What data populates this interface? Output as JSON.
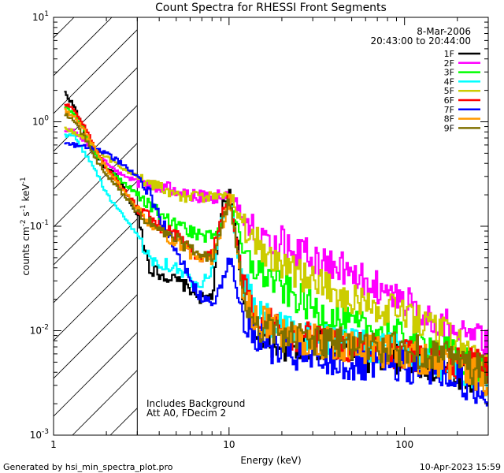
{
  "chart_data": {
    "type": "line",
    "title": "Count Spectra for RHESSI Front Segments",
    "xlabel": "Energy (keV)",
    "ylabel_parts": [
      "counts cm",
      "-2",
      " s",
      "-1",
      " keV",
      "-1"
    ],
    "x_scale": "log",
    "y_scale": "log",
    "xlim": [
      1,
      300
    ],
    "ylim": [
      0.001,
      10
    ],
    "x_ticks": [
      {
        "value": 1,
        "label": "1"
      },
      {
        "value": 10,
        "label": "10"
      },
      {
        "value": 100,
        "label": "100"
      }
    ],
    "y_ticks": [
      {
        "exp": -3,
        "label_base": "10",
        "label_exp": "-3"
      },
      {
        "exp": -2,
        "label_base": "10",
        "label_exp": "-2"
      },
      {
        "exp": -1,
        "label_base": "10",
        "label_exp": "-1"
      },
      {
        "exp": 0,
        "label_base": "10",
        "label_exp": "0"
      },
      {
        "exp": 1,
        "label_base": "10",
        "label_exp": "1"
      }
    ],
    "shaded_region": {
      "from_energy": 1,
      "to_energy": 3,
      "pattern": "diagonal-hatch"
    },
    "header_text": {
      "date": "8-Mar-2006",
      "time_range": "20:43:00 to 20:44:00"
    },
    "annotations": [
      "Includes Background",
      "Att A0, FDecim 2"
    ],
    "footer_left": "Generated by hsi_min_spectra_plot.pro",
    "footer_right": "10-Apr-2023 15:59",
    "legend_position": "top-right",
    "series": [
      {
        "name": "1F",
        "color": "#000000",
        "points": [
          [
            1.15,
            1.9
          ],
          [
            1.3,
            1.4
          ],
          [
            1.5,
            0.75
          ],
          [
            1.7,
            0.5
          ],
          [
            2.0,
            0.35
          ],
          [
            2.3,
            0.3
          ],
          [
            2.6,
            0.2
          ],
          [
            3.0,
            0.12
          ],
          [
            3.5,
            0.04
          ],
          [
            4.0,
            0.035
          ],
          [
            5.0,
            0.03
          ],
          [
            6.0,
            0.025
          ],
          [
            7.0,
            0.02
          ],
          [
            8.0,
            0.022
          ],
          [
            9.0,
            0.15
          ],
          [
            10.0,
            0.2
          ],
          [
            11.0,
            0.08
          ],
          [
            12.0,
            0.015
          ],
          [
            14.0,
            0.01
          ],
          [
            17.0,
            0.008
          ],
          [
            20.0,
            0.0075
          ],
          [
            25.0,
            0.007
          ],
          [
            30.0,
            0.0075
          ],
          [
            40.0,
            0.0065
          ],
          [
            50.0,
            0.006
          ],
          [
            70.0,
            0.0055
          ],
          [
            100.0,
            0.005
          ],
          [
            150.0,
            0.0045
          ],
          [
            200.0,
            0.004
          ],
          [
            280.0,
            0.0035
          ]
        ]
      },
      {
        "name": "2F",
        "color": "#ff00ff",
        "points": [
          [
            1.15,
            0.85
          ],
          [
            1.3,
            0.8
          ],
          [
            1.5,
            0.65
          ],
          [
            1.7,
            0.5
          ],
          [
            2.0,
            0.4
          ],
          [
            2.5,
            0.3
          ],
          [
            3.0,
            0.27
          ],
          [
            4.0,
            0.24
          ],
          [
            5.0,
            0.22
          ],
          [
            6.0,
            0.2
          ],
          [
            7.0,
            0.19
          ],
          [
            8.0,
            0.185
          ],
          [
            9.0,
            0.2
          ],
          [
            10.0,
            0.21
          ],
          [
            11.0,
            0.16
          ],
          [
            12.0,
            0.12
          ],
          [
            14.0,
            0.1
          ],
          [
            17.0,
            0.08
          ],
          [
            20.0,
            0.07
          ],
          [
            25.0,
            0.058
          ],
          [
            30.0,
            0.05
          ],
          [
            40.0,
            0.042
          ],
          [
            50.0,
            0.035
          ],
          [
            70.0,
            0.026
          ],
          [
            100.0,
            0.019
          ],
          [
            150.0,
            0.013
          ],
          [
            200.0,
            0.01
          ],
          [
            280.0,
            0.0075
          ]
        ]
      },
      {
        "name": "3F",
        "color": "#00ff00",
        "points": [
          [
            1.15,
            1.4
          ],
          [
            1.3,
            1.2
          ],
          [
            1.5,
            0.8
          ],
          [
            1.7,
            0.5
          ],
          [
            2.0,
            0.35
          ],
          [
            2.5,
            0.26
          ],
          [
            3.0,
            0.2
          ],
          [
            4.0,
            0.13
          ],
          [
            5.0,
            0.1
          ],
          [
            6.0,
            0.09
          ],
          [
            7.0,
            0.08
          ],
          [
            8.0,
            0.08
          ],
          [
            9.0,
            0.12
          ],
          [
            10.0,
            0.19
          ],
          [
            11.0,
            0.1
          ],
          [
            12.0,
            0.05
          ],
          [
            14.0,
            0.04
          ],
          [
            17.0,
            0.032
          ],
          [
            20.0,
            0.025
          ],
          [
            25.0,
            0.02
          ],
          [
            30.0,
            0.016
          ],
          [
            40.0,
            0.013
          ],
          [
            50.0,
            0.011
          ],
          [
            70.0,
            0.01
          ],
          [
            100.0,
            0.0085
          ],
          [
            150.0,
            0.007
          ],
          [
            200.0,
            0.0055
          ],
          [
            280.0,
            0.004
          ]
        ]
      },
      {
        "name": "4F",
        "color": "#00ffff",
        "points": [
          [
            1.15,
            0.75
          ],
          [
            1.3,
            0.72
          ],
          [
            1.5,
            0.5
          ],
          [
            1.7,
            0.35
          ],
          [
            2.0,
            0.2
          ],
          [
            2.5,
            0.12
          ],
          [
            3.0,
            0.08
          ],
          [
            3.5,
            0.05
          ],
          [
            4.0,
            0.045
          ],
          [
            5.0,
            0.04
          ],
          [
            6.0,
            0.03
          ],
          [
            7.0,
            0.03
          ],
          [
            8.0,
            0.04
          ],
          [
            9.0,
            0.12
          ],
          [
            10.0,
            0.18
          ],
          [
            11.0,
            0.06
          ],
          [
            12.0,
            0.03
          ],
          [
            14.0,
            0.015
          ],
          [
            17.0,
            0.012
          ],
          [
            20.0,
            0.01
          ],
          [
            25.0,
            0.009
          ],
          [
            30.0,
            0.0085
          ],
          [
            40.0,
            0.008
          ],
          [
            50.0,
            0.0075
          ],
          [
            70.0,
            0.007
          ],
          [
            100.0,
            0.0065
          ],
          [
            150.0,
            0.005
          ],
          [
            200.0,
            0.0045
          ],
          [
            280.0,
            0.003
          ]
        ]
      },
      {
        "name": "5F",
        "color": "#cccc00",
        "points": [
          [
            1.15,
            0.85
          ],
          [
            1.3,
            0.8
          ],
          [
            1.5,
            0.7
          ],
          [
            1.7,
            0.55
          ],
          [
            2.0,
            0.45
          ],
          [
            2.5,
            0.35
          ],
          [
            3.0,
            0.3
          ],
          [
            4.0,
            0.24
          ],
          [
            5.0,
            0.2
          ],
          [
            6.0,
            0.19
          ],
          [
            7.0,
            0.185
          ],
          [
            8.0,
            0.19
          ],
          [
            9.0,
            0.2
          ],
          [
            10.0,
            0.22
          ],
          [
            11.0,
            0.13
          ],
          [
            12.0,
            0.1
          ],
          [
            14.0,
            0.07
          ],
          [
            17.0,
            0.055
          ],
          [
            20.0,
            0.045
          ],
          [
            25.0,
            0.035
          ],
          [
            30.0,
            0.03
          ],
          [
            40.0,
            0.025
          ],
          [
            50.0,
            0.02
          ],
          [
            70.0,
            0.017
          ],
          [
            100.0,
            0.014
          ],
          [
            150.0,
            0.01
          ],
          [
            200.0,
            0.008
          ],
          [
            280.0,
            0.0045
          ]
        ]
      },
      {
        "name": "6F",
        "color": "#ff0000",
        "points": [
          [
            1.15,
            1.5
          ],
          [
            1.3,
            1.3
          ],
          [
            1.5,
            0.9
          ],
          [
            1.7,
            0.55
          ],
          [
            2.0,
            0.35
          ],
          [
            2.5,
            0.22
          ],
          [
            3.0,
            0.15
          ],
          [
            4.0,
            0.1
          ],
          [
            5.0,
            0.08
          ],
          [
            6.0,
            0.06
          ],
          [
            7.0,
            0.05
          ],
          [
            8.0,
            0.06
          ],
          [
            9.0,
            0.12
          ],
          [
            10.0,
            0.2
          ],
          [
            11.0,
            0.07
          ],
          [
            12.0,
            0.025
          ],
          [
            14.0,
            0.015
          ],
          [
            17.0,
            0.012
          ],
          [
            20.0,
            0.01
          ],
          [
            25.0,
            0.009
          ],
          [
            30.0,
            0.008
          ],
          [
            40.0,
            0.0075
          ],
          [
            50.0,
            0.007
          ],
          [
            70.0,
            0.0065
          ],
          [
            100.0,
            0.006
          ],
          [
            150.0,
            0.0055
          ],
          [
            200.0,
            0.005
          ],
          [
            280.0,
            0.0045
          ]
        ]
      },
      {
        "name": "7F",
        "color": "#0000ff",
        "points": [
          [
            1.15,
            0.62
          ],
          [
            1.3,
            0.6
          ],
          [
            1.5,
            0.58
          ],
          [
            1.7,
            0.55
          ],
          [
            2.0,
            0.5
          ],
          [
            2.5,
            0.38
          ],
          [
            3.0,
            0.3
          ],
          [
            3.5,
            0.2
          ],
          [
            4.0,
            0.12
          ],
          [
            5.0,
            0.06
          ],
          [
            6.0,
            0.03
          ],
          [
            7.0,
            0.02
          ],
          [
            8.0,
            0.018
          ],
          [
            9.0,
            0.03
          ],
          [
            10.0,
            0.05
          ],
          [
            11.0,
            0.025
          ],
          [
            12.0,
            0.012
          ],
          [
            14.0,
            0.009
          ],
          [
            17.0,
            0.007
          ],
          [
            20.0,
            0.006
          ],
          [
            25.0,
            0.0055
          ],
          [
            30.0,
            0.005
          ],
          [
            40.0,
            0.005
          ],
          [
            50.0,
            0.0045
          ],
          [
            70.0,
            0.0045
          ],
          [
            100.0,
            0.0045
          ],
          [
            150.0,
            0.004
          ],
          [
            200.0,
            0.0035
          ],
          [
            280.0,
            0.0025
          ]
        ]
      },
      {
        "name": "8F",
        "color": "#ff9900",
        "points": [
          [
            1.15,
            1.3
          ],
          [
            1.3,
            1.1
          ],
          [
            1.5,
            0.8
          ],
          [
            1.7,
            0.55
          ],
          [
            2.0,
            0.35
          ],
          [
            2.5,
            0.22
          ],
          [
            3.0,
            0.14
          ],
          [
            4.0,
            0.09
          ],
          [
            5.0,
            0.07
          ],
          [
            6.0,
            0.055
          ],
          [
            7.0,
            0.045
          ],
          [
            8.0,
            0.05
          ],
          [
            9.0,
            0.1
          ],
          [
            10.0,
            0.18
          ],
          [
            11.0,
            0.06
          ],
          [
            12.0,
            0.02
          ],
          [
            14.0,
            0.013
          ],
          [
            17.0,
            0.011
          ],
          [
            20.0,
            0.009
          ],
          [
            25.0,
            0.0085
          ],
          [
            30.0,
            0.008
          ],
          [
            40.0,
            0.0075
          ],
          [
            50.0,
            0.007
          ],
          [
            70.0,
            0.0065
          ],
          [
            100.0,
            0.006
          ],
          [
            150.0,
            0.005
          ],
          [
            200.0,
            0.0045
          ],
          [
            280.0,
            0.0035
          ]
        ]
      },
      {
        "name": "9F",
        "color": "#807000",
        "points": [
          [
            1.15,
            1.2
          ],
          [
            1.3,
            1.0
          ],
          [
            1.5,
            0.7
          ],
          [
            1.7,
            0.45
          ],
          [
            2.0,
            0.3
          ],
          [
            2.5,
            0.2
          ],
          [
            3.0,
            0.13
          ],
          [
            4.0,
            0.09
          ],
          [
            5.0,
            0.075
          ],
          [
            6.0,
            0.06
          ],
          [
            7.0,
            0.05
          ],
          [
            8.0,
            0.05
          ],
          [
            9.0,
            0.1
          ],
          [
            10.0,
            0.18
          ],
          [
            11.0,
            0.06
          ],
          [
            12.0,
            0.02
          ],
          [
            14.0,
            0.012
          ],
          [
            17.0,
            0.01
          ],
          [
            20.0,
            0.009
          ],
          [
            25.0,
            0.0085
          ],
          [
            30.0,
            0.008
          ],
          [
            40.0,
            0.0075
          ],
          [
            50.0,
            0.0075
          ],
          [
            70.0,
            0.007
          ],
          [
            100.0,
            0.0065
          ],
          [
            150.0,
            0.006
          ],
          [
            200.0,
            0.005
          ],
          [
            280.0,
            0.004
          ]
        ]
      }
    ]
  }
}
